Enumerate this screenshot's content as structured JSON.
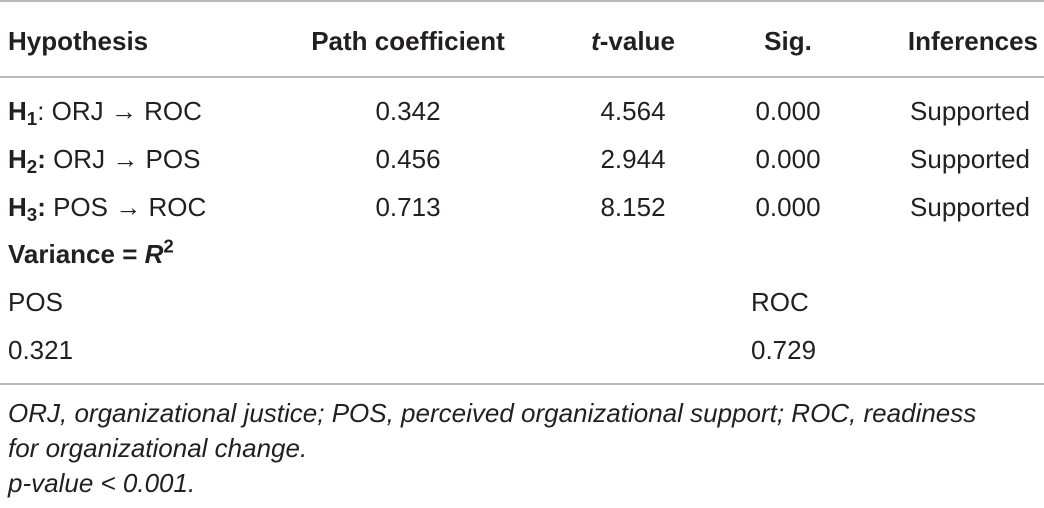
{
  "table": {
    "headers": {
      "hypothesis": "Hypothesis",
      "path_coefficient": "Path coefficient",
      "t_value_italic": "t",
      "t_value_rest": "-value",
      "sig": "Sig.",
      "inferences": "Inferences"
    },
    "rows": [
      {
        "h_letter": "H",
        "h_sub": "1",
        "h_sep": ":",
        "path": " ORJ → ROC",
        "coef": "0.342",
        "t": "4.564",
        "sig": "0.000",
        "inference": "Supported"
      },
      {
        "h_letter": "H",
        "h_sub": "2",
        "h_sep": ":",
        "path": " ORJ → POS",
        "coef": "0.456",
        "t": "2.944",
        "sig": "0.000",
        "inference": "Supported"
      },
      {
        "h_letter": "H",
        "h_sub": "3",
        "h_sep": ":",
        "path": " POS → ROC",
        "coef": "0.713",
        "t": "8.152",
        "sig": "0.000",
        "inference": "Supported"
      }
    ],
    "variance": {
      "label": "Variance = ",
      "r_symbol": "R",
      "r_exp": "2",
      "pos_label": "POS",
      "roc_label": "ROC",
      "pos_value": "0.321",
      "roc_value": "0.729"
    }
  },
  "footnotes": {
    "abbrev_line1": "ORJ, organizational justice; POS, perceived organizational support; ROC, readiness",
    "abbrev_line2": "for organizational change.",
    "pvalue": "p-value < 0.001."
  }
}
